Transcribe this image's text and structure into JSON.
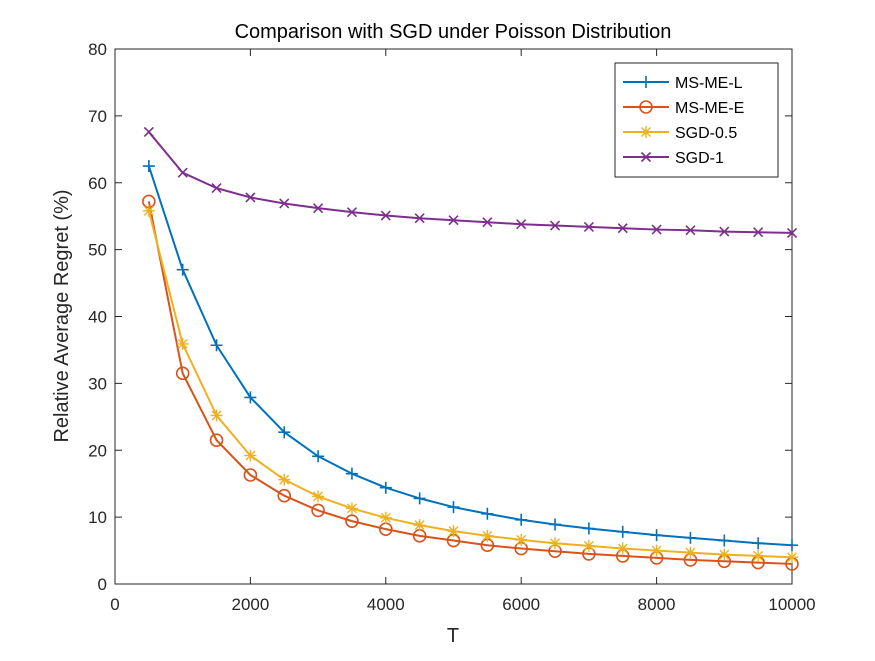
{
  "chart_data": {
    "type": "line",
    "title": "Comparison with SGD under Poisson Distribution",
    "xlabel": "T",
    "ylabel": "Relative Average Regret (%)",
    "xlim": [
      0,
      10000
    ],
    "ylim": [
      0,
      80
    ],
    "xticks": [
      0,
      2000,
      4000,
      6000,
      8000,
      10000
    ],
    "xtick_labels": [
      "0",
      "2000",
      "4000",
      "6000",
      "8000",
      "10000"
    ],
    "yticks": [
      0,
      10,
      20,
      30,
      40,
      50,
      60,
      70,
      80
    ],
    "ytick_labels": [
      "0",
      "10",
      "20",
      "30",
      "40",
      "50",
      "60",
      "70",
      "80"
    ],
    "grid": false,
    "legend_position": "top-right",
    "x": [
      500,
      1000,
      1500,
      2000,
      2500,
      3000,
      3500,
      4000,
      4500,
      5000,
      5500,
      6000,
      6500,
      7000,
      7500,
      8000,
      8500,
      9000,
      9500,
      10000
    ],
    "series": [
      {
        "name": "MS-ME-L",
        "color": "#0072BD",
        "marker": "plus",
        "values": [
          62.5,
          47.0,
          35.7,
          27.9,
          22.7,
          19.1,
          16.5,
          14.4,
          12.8,
          11.5,
          10.5,
          9.6,
          8.9,
          8.3,
          7.8,
          7.3,
          6.9,
          6.5,
          6.1,
          5.8
        ]
      },
      {
        "name": "MS-ME-E",
        "color": "#D95319",
        "marker": "circle",
        "values": [
          57.2,
          31.5,
          21.5,
          16.3,
          13.2,
          11.0,
          9.4,
          8.2,
          7.2,
          6.5,
          5.8,
          5.3,
          4.9,
          4.5,
          4.2,
          3.9,
          3.6,
          3.4,
          3.2,
          3.0
        ]
      },
      {
        "name": "SGD-0.5",
        "color": "#EDB120",
        "marker": "asterisk",
        "values": [
          55.8,
          35.9,
          25.2,
          19.2,
          15.6,
          13.1,
          11.3,
          9.9,
          8.8,
          7.9,
          7.2,
          6.6,
          6.1,
          5.7,
          5.3,
          5.0,
          4.7,
          4.4,
          4.2,
          4.0
        ]
      },
      {
        "name": "SGD-1",
        "color": "#7E2F8E",
        "marker": "x",
        "values": [
          67.6,
          61.5,
          59.2,
          57.8,
          56.9,
          56.2,
          55.6,
          55.1,
          54.7,
          54.4,
          54.1,
          53.8,
          53.6,
          53.4,
          53.2,
          53.0,
          52.9,
          52.7,
          52.6,
          52.5
        ]
      }
    ]
  }
}
